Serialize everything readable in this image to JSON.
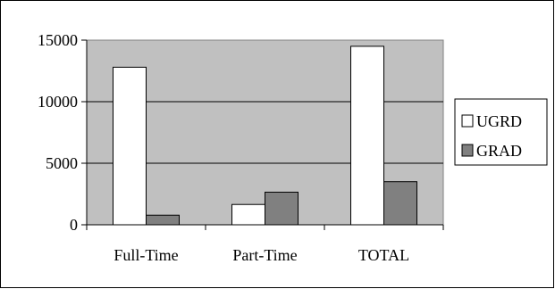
{
  "chart_data": {
    "type": "bar",
    "categories": [
      "Full-Time",
      "Part-Time",
      "TOTAL"
    ],
    "series": [
      {
        "name": "UGRD",
        "values": [
          12800,
          1650,
          14500
        ],
        "color": "#ffffff"
      },
      {
        "name": "GRAD",
        "values": [
          780,
          2650,
          3500
        ],
        "color": "#808080"
      }
    ],
    "title": "",
    "xlabel": "",
    "ylabel": "",
    "ylim": [
      0,
      15000
    ],
    "yticks": [
      0,
      5000,
      10000,
      15000
    ],
    "grid": true,
    "plot_background": "#c0c0c0",
    "legend_position": "right"
  }
}
